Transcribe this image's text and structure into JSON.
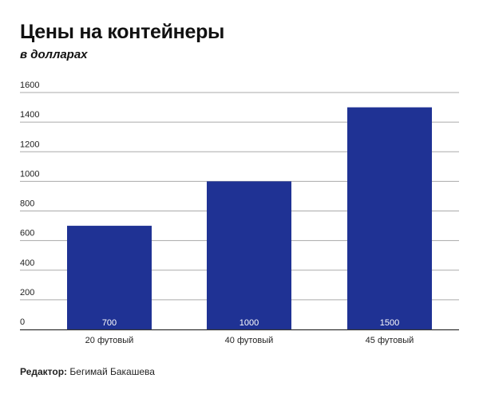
{
  "title": "Цены на контейнеры",
  "subtitle": "в долларах",
  "footer": {
    "label": "Редактор:",
    "name": "Бегимай Бакашева"
  },
  "colors": {
    "bar": "#1f3294",
    "grid": "#aaaaaa",
    "axis": "#333333",
    "bar_label": "#ffffff"
  },
  "chart_data": {
    "type": "bar",
    "title": "Цены на контейнеры",
    "subtitle": "в долларах",
    "categories": [
      "20 футовый",
      "40 футовый",
      "45 футовый"
    ],
    "values": [
      700,
      1000,
      1500
    ],
    "data_labels": [
      "700",
      "1000",
      "1500"
    ],
    "y_ticks": [
      0,
      200,
      400,
      600,
      800,
      1000,
      1200,
      1400,
      1600
    ],
    "ylim": [
      0,
      1600
    ],
    "xlabel": "",
    "ylabel": "",
    "grid": true,
    "legend": "none"
  }
}
